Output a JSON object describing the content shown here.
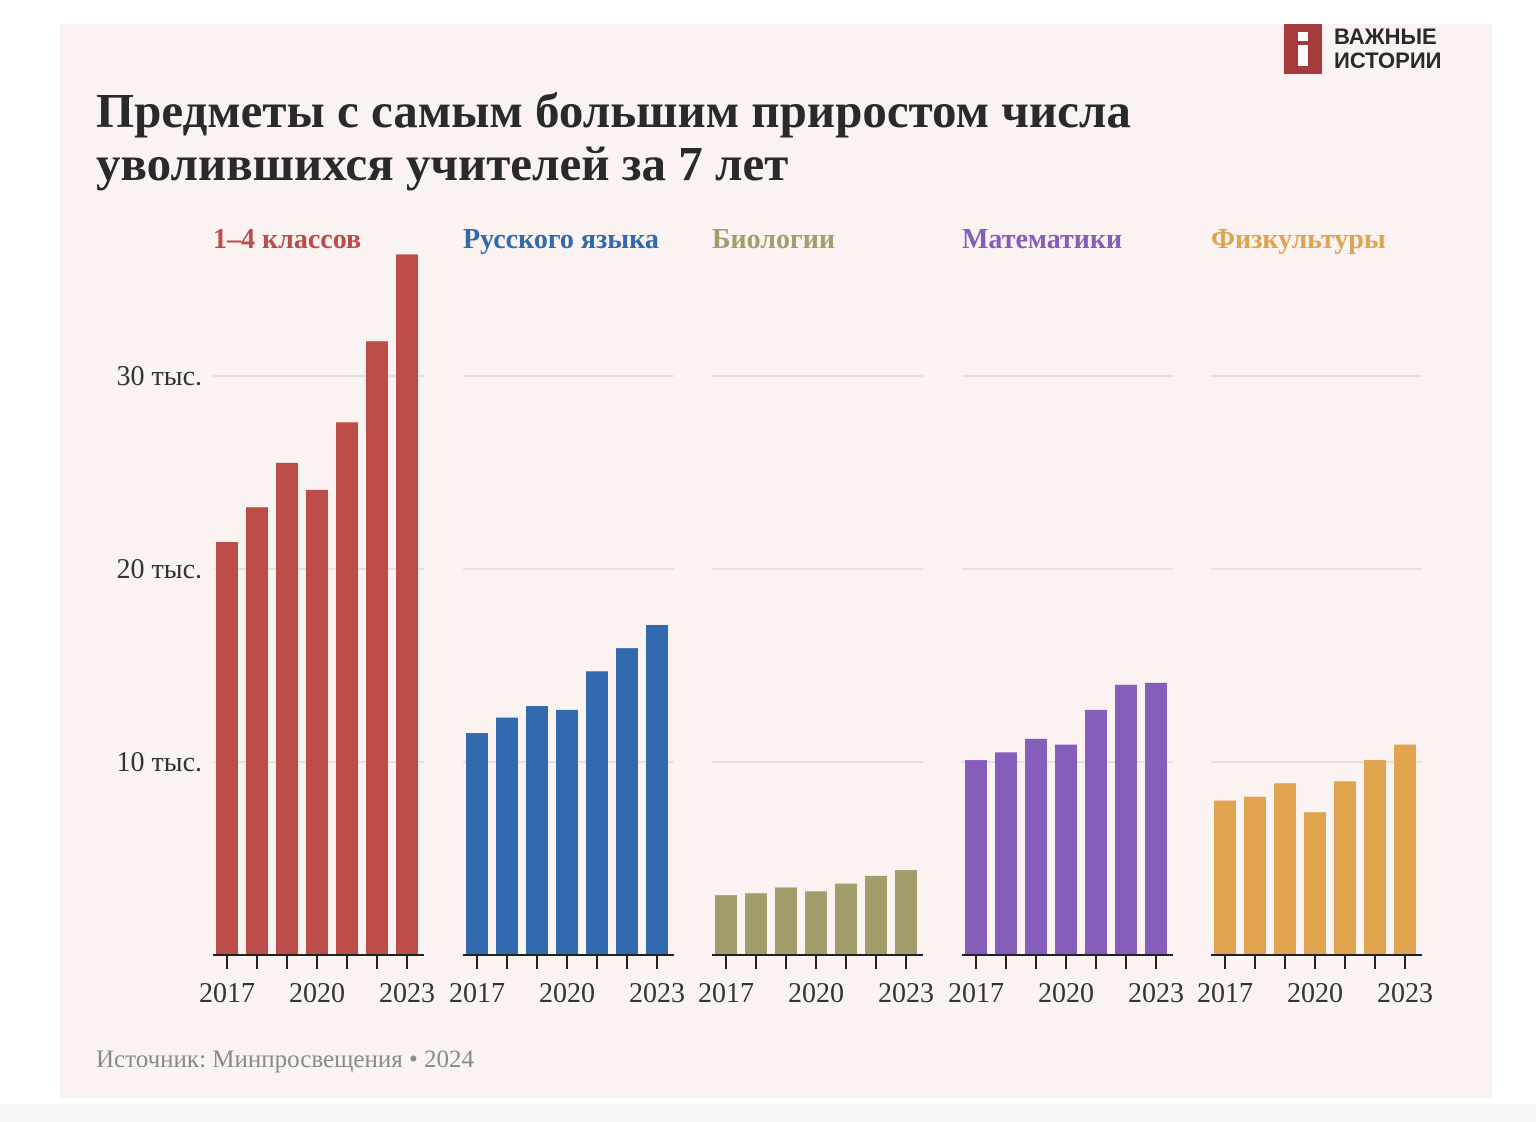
{
  "title": {
    "line1": "Предметы с самым большим приростом числа",
    "line2": "уволившихся учителей за 7 лет"
  },
  "logo": {
    "line1": "ВАЖНЫЕ",
    "line2": "ИСТОРИИ",
    "color": "#a63a3d"
  },
  "source": "Источник: Минпросвещения • 2024",
  "chart_data": {
    "type": "bar",
    "years": [
      2017,
      2018,
      2019,
      2020,
      2021,
      2022,
      2023
    ],
    "x_tick_labels": [
      "2017",
      "2020",
      "2023"
    ],
    "y_ticks": [
      10000,
      20000,
      30000
    ],
    "y_tick_labels": [
      "10 тыс.",
      "20 тыс.",
      "30 тыс."
    ],
    "ylim": [
      0,
      36500
    ],
    "grid": true,
    "series": [
      {
        "name": "1–4 классов",
        "color": "#bc4c47",
        "values": [
          21400,
          23200,
          25500,
          24100,
          27600,
          31800,
          36300
        ]
      },
      {
        "name": "Русского языка",
        "color": "#326aaf",
        "values": [
          11500,
          12300,
          12900,
          12700,
          14700,
          15900,
          17100
        ]
      },
      {
        "name": "Биологии",
        "color": "#a39c6b",
        "values": [
          3100,
          3200,
          3500,
          3300,
          3700,
          4100,
          4400
        ]
      },
      {
        "name": "Математики",
        "color": "#855ebb",
        "values": [
          10100,
          10500,
          11200,
          10900,
          12700,
          14000,
          14100
        ]
      },
      {
        "name": "Физкультуры",
        "color": "#e0a34e",
        "values": [
          8000,
          8200,
          8900,
          7400,
          9000,
          10100,
          10900
        ]
      }
    ]
  }
}
